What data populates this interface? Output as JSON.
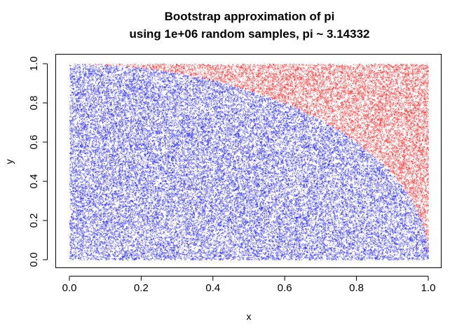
{
  "chart_data": {
    "type": "scatter",
    "title_lines": [
      "Bootstrap approximation of pi",
      "using 1e+06 random samples, pi ~ 3.14332"
    ],
    "xlabel": "x",
    "ylabel": "y",
    "xlim": [
      0,
      1
    ],
    "ylim": [
      0,
      1
    ],
    "x_ticks": [
      "0.0",
      "0.2",
      "0.4",
      "0.6",
      "0.8",
      "1.0"
    ],
    "y_ticks": [
      "0.0",
      "0.2",
      "0.4",
      "0.6",
      "0.8",
      "1.0"
    ],
    "grid": false,
    "legend": "none",
    "n_samples": 1000000,
    "pi_estimate": 3.14332,
    "series": [
      {
        "rule": "x^2 + y^2 <= 1",
        "color": "#0000ff"
      },
      {
        "rule": "x^2 + y^2 > 1",
        "color": "#ff0000"
      }
    ]
  }
}
